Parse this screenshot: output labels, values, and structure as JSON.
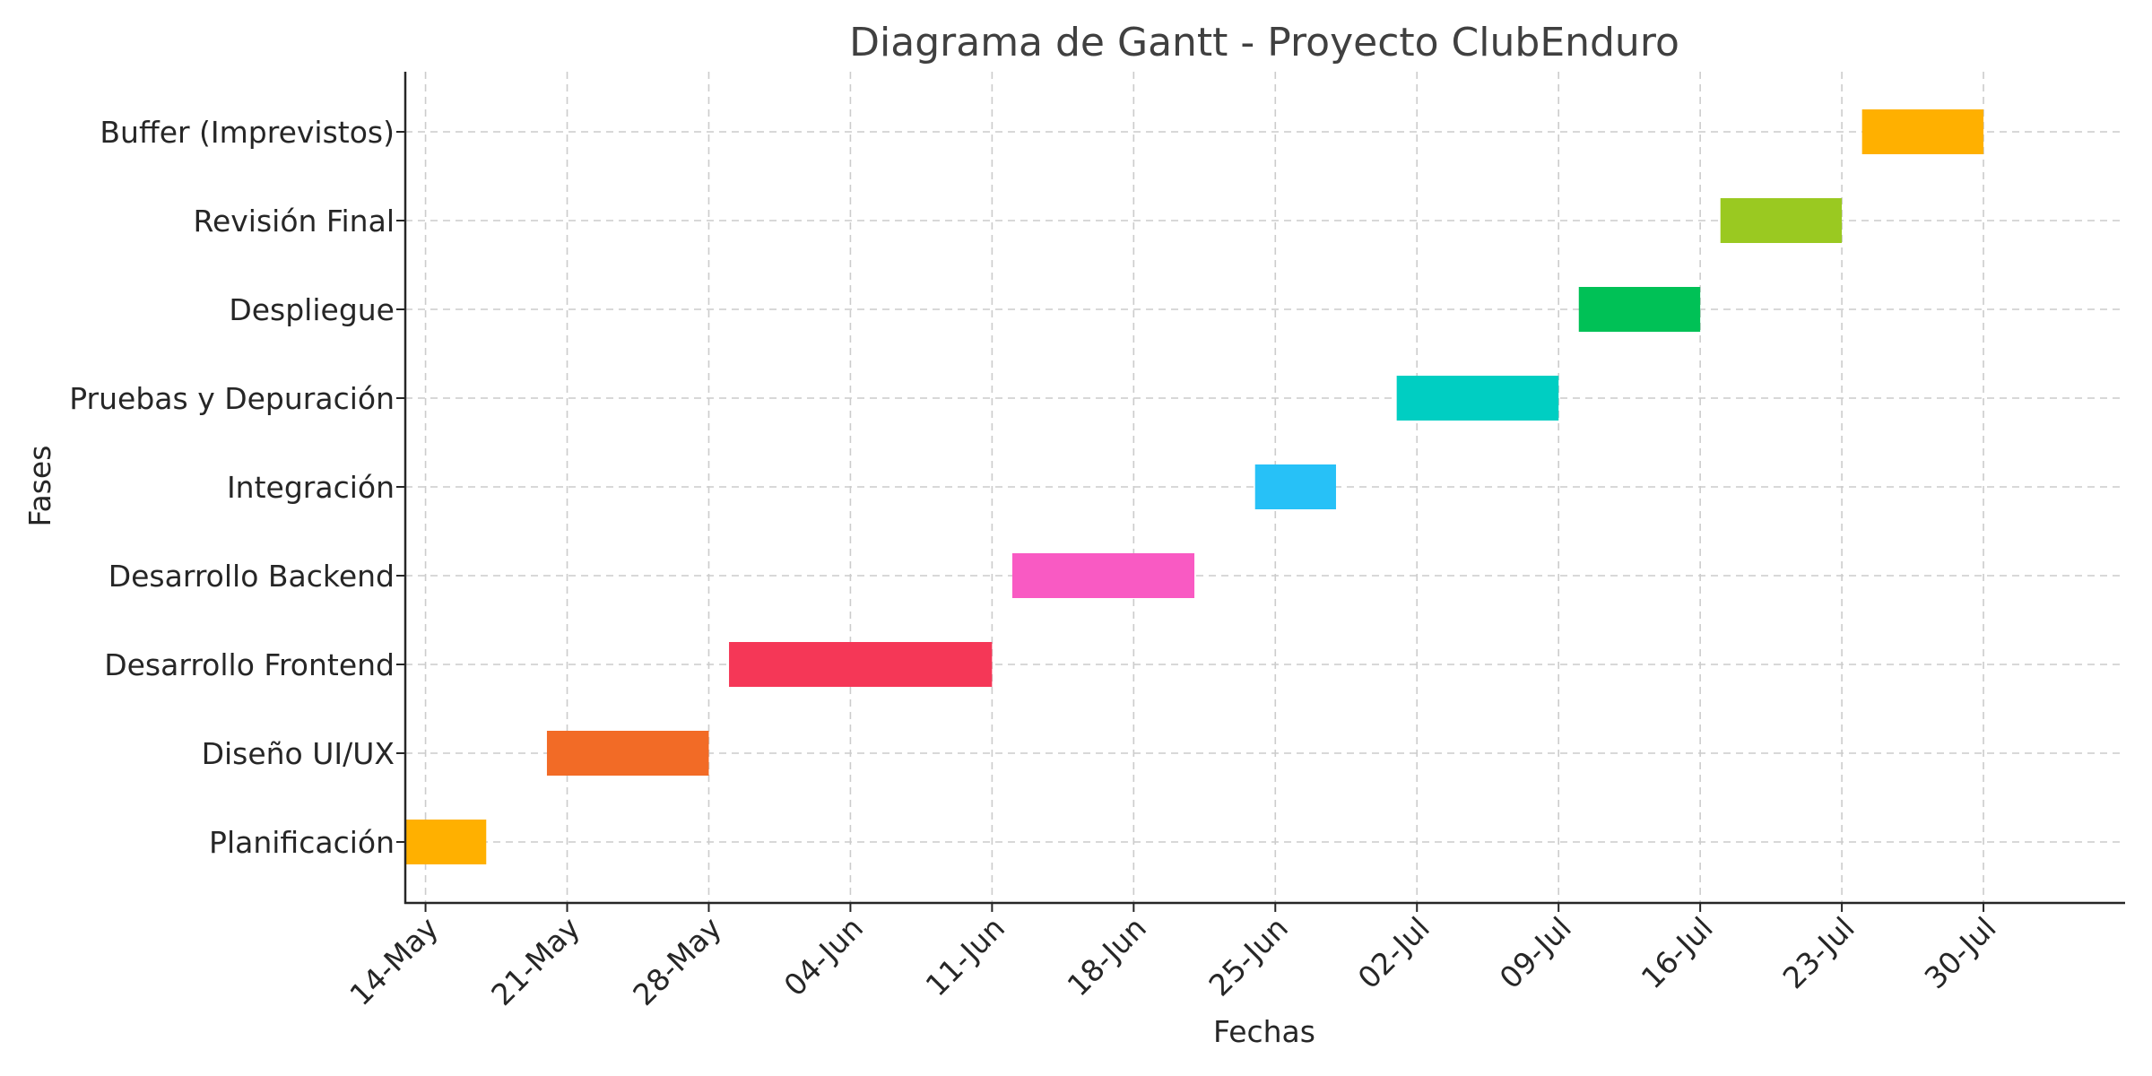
{
  "chart_data": {
    "type": "gantt",
    "title": "Diagrama de Gantt - Proyecto ClubEnduro",
    "xlabel": "Fechas",
    "ylabel": "Fases",
    "grid": true,
    "x_ticks": [
      "2024-05-14",
      "2024-05-21",
      "2024-05-28",
      "2024-06-04",
      "2024-06-11",
      "2024-06-18",
      "2024-06-25",
      "2024-07-02",
      "2024-07-09",
      "2024-07-16",
      "2024-07-23",
      "2024-07-30"
    ],
    "x_tick_labels": [
      "14-May",
      "21-May",
      "28-May",
      "04-Jun",
      "11-Jun",
      "18-Jun",
      "25-Jun",
      "02-Jul",
      "09-Jul",
      "16-Jul",
      "23-Jul",
      "30-Jul"
    ],
    "xlim": [
      "2024-05-13",
      "2024-08-06"
    ],
    "tasks": [
      {
        "name": "Planificación",
        "start": "2024-05-13",
        "end": "2024-05-17",
        "color": "#FFB000"
      },
      {
        "name": "Diseño UI/UX",
        "start": "2024-05-20",
        "end": "2024-05-28",
        "color": "#F26B26"
      },
      {
        "name": "Desarrollo Frontend",
        "start": "2024-05-29",
        "end": "2024-06-11",
        "color": "#F53757"
      },
      {
        "name": "Desarrollo Backend",
        "start": "2024-06-12",
        "end": "2024-06-21",
        "color": "#F95AC3"
      },
      {
        "name": "Integración",
        "start": "2024-06-24",
        "end": "2024-06-28",
        "color": "#27C1F7"
      },
      {
        "name": "Pruebas y Depuración",
        "start": "2024-07-01",
        "end": "2024-07-09",
        "color": "#00CEC2"
      },
      {
        "name": "Despliegue",
        "start": "2024-07-10",
        "end": "2024-07-16",
        "color": "#00C156"
      },
      {
        "name": "Revisión Final",
        "start": "2024-07-17",
        "end": "2024-07-23",
        "color": "#9AC921"
      },
      {
        "name": "Buffer (Imprevistos)",
        "start": "2024-07-24",
        "end": "2024-07-30",
        "color": "#FFB000"
      }
    ]
  }
}
